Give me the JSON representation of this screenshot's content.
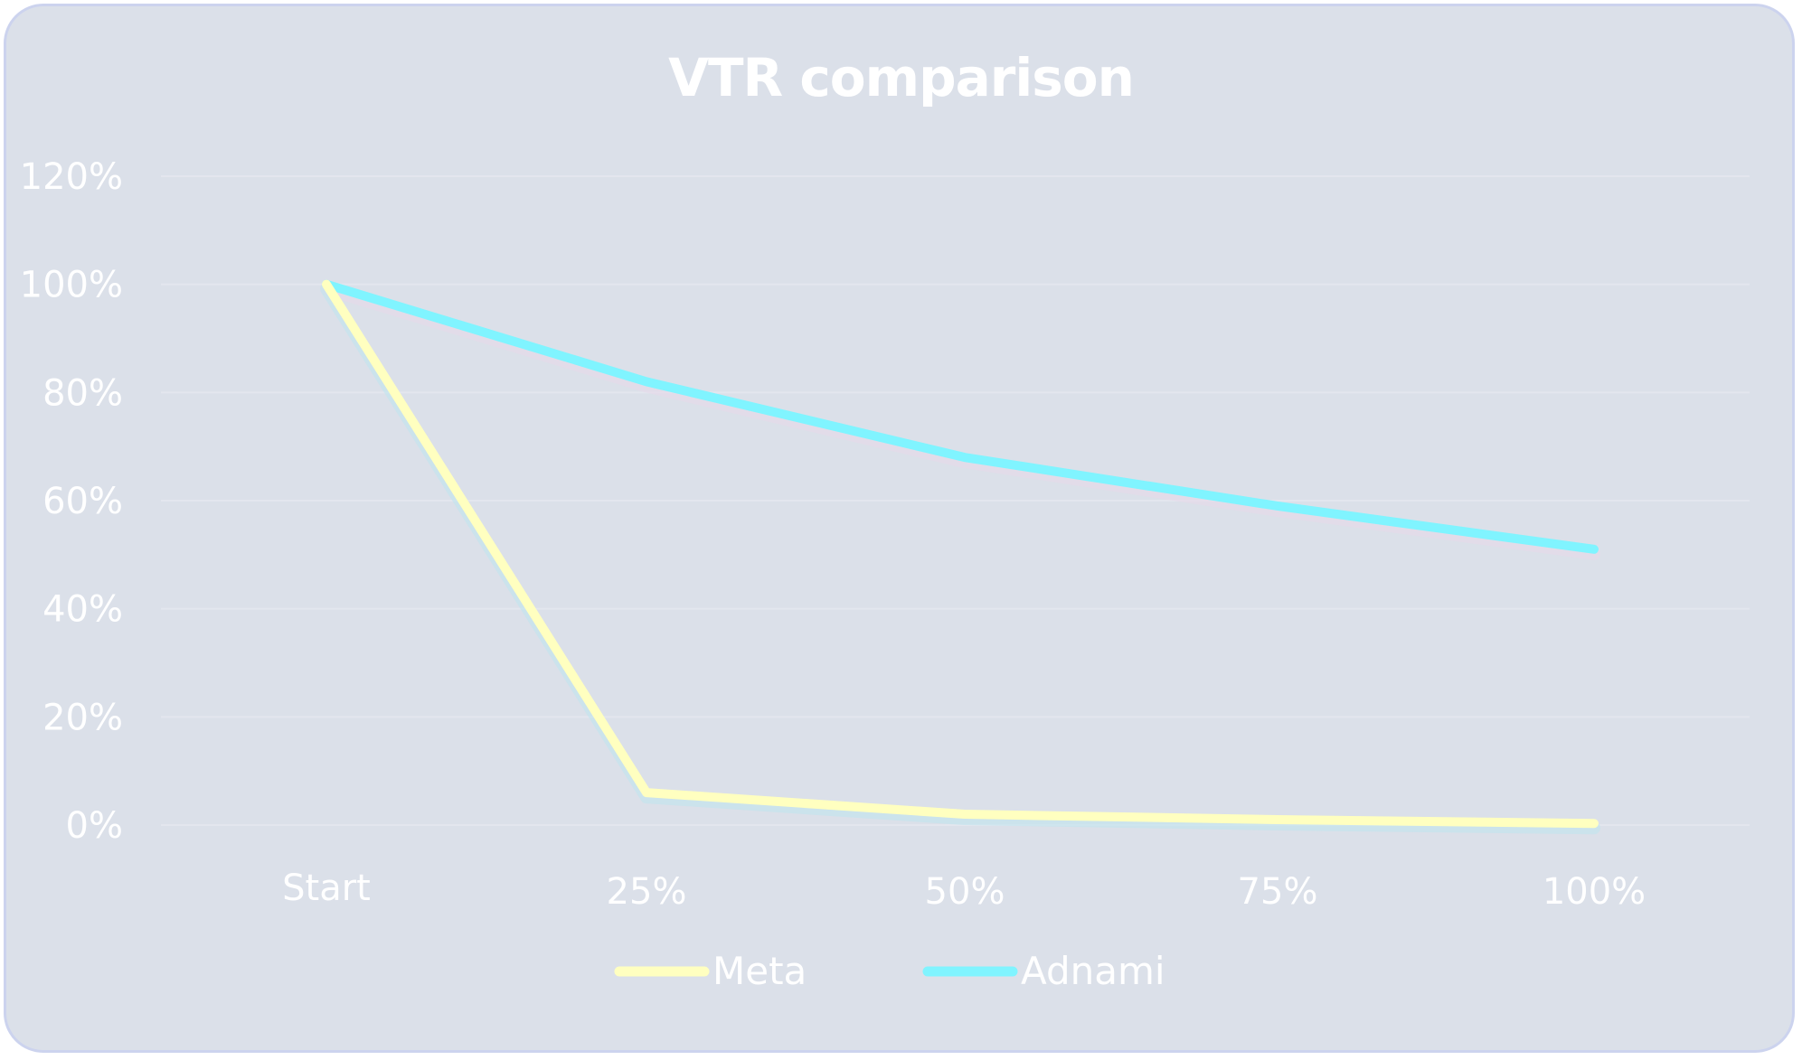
{
  "chart_data": {
    "type": "line",
    "title": "VTR comparison",
    "categories": [
      "Start",
      "25%",
      "50%",
      "75%",
      "100%"
    ],
    "yticks": [
      "0%",
      "20%",
      "40%",
      "60%",
      "80%",
      "100%",
      "120%"
    ],
    "ylim": [
      0,
      120
    ],
    "grid": true,
    "legend": "bottom",
    "series": [
      {
        "name": "Meta",
        "color": "#ffffc0",
        "values": [
          100,
          6,
          2,
          1,
          0.3
        ]
      },
      {
        "name": "Adnami",
        "color": "#80f4ff",
        "values": [
          100,
          82,
          68,
          59,
          51
        ]
      }
    ]
  }
}
